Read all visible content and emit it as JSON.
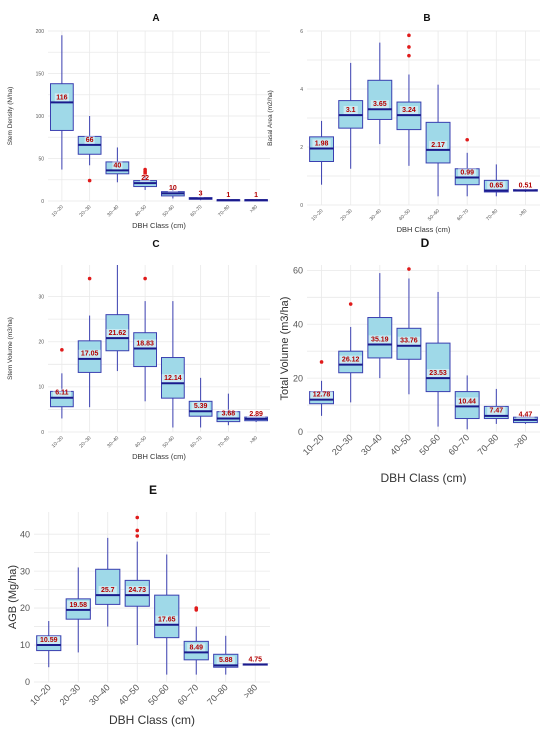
{
  "chart_data": [
    {
      "type": "box",
      "panel": "A",
      "categories": [
        "10–20",
        "20–30",
        "30–40",
        "40–50",
        "50–60",
        "60–70",
        "70–80",
        ">80"
      ],
      "xlabel": "DBH Class (cm)",
      "ylabel": "Stem Density (N/ha)",
      "ylim": [
        0,
        200
      ],
      "yticks": [
        0,
        50,
        100,
        150,
        200
      ],
      "labels": [
        "116",
        "66",
        "40",
        "22",
        "10",
        "3",
        "1",
        "1"
      ],
      "boxes": [
        {
          "min": 37,
          "q1": 83,
          "median": 116,
          "q3": 138,
          "max": 195,
          "outliers": []
        },
        {
          "min": 42,
          "q1": 55,
          "median": 66,
          "q3": 76,
          "max": 100,
          "outliers": [
            24
          ]
        },
        {
          "min": 22,
          "q1": 32,
          "median": 36,
          "q3": 46,
          "max": 63,
          "outliers": []
        },
        {
          "min": 13,
          "q1": 17,
          "median": 21,
          "q3": 24,
          "max": 29,
          "outliers": [
            31,
            33,
            35,
            37
          ]
        },
        {
          "min": 3,
          "q1": 6,
          "median": 9,
          "q3": 11,
          "max": 15,
          "outliers": []
        },
        {
          "min": 1,
          "q1": 2,
          "median": 3,
          "q3": 4,
          "max": 5,
          "outliers": []
        },
        {
          "min": 0,
          "q1": 0.5,
          "median": 1,
          "q3": 1.5,
          "max": 2,
          "outliers": []
        },
        {
          "min": 0,
          "q1": 0.5,
          "median": 1,
          "q3": 1.5,
          "max": 2,
          "outliers": []
        }
      ]
    },
    {
      "type": "box",
      "panel": "B",
      "categories": [
        "10–20",
        "20–30",
        "30–40",
        "40–50",
        "50–60",
        "60–70",
        "70–80",
        ">80"
      ],
      "xlabel": "DBH Class (cm)",
      "ylabel": "Basal Area (m2/ha)",
      "ylim": [
        0,
        6
      ],
      "yticks": [
        0,
        2,
        4,
        6
      ],
      "labels": [
        "1.98",
        "3.1",
        "3.65",
        "3.24",
        "2.17",
        "0.99",
        "0.65",
        "0.51"
      ],
      "boxes": [
        {
          "min": 0.7,
          "q1": 1.5,
          "median": 1.95,
          "q3": 2.35,
          "max": 2.9,
          "outliers": []
        },
        {
          "min": 1.25,
          "q1": 2.65,
          "median": 3.1,
          "q3": 3.6,
          "max": 4.9,
          "outliers": []
        },
        {
          "min": 2.1,
          "q1": 2.95,
          "median": 3.3,
          "q3": 4.3,
          "max": 5.6,
          "outliers": []
        },
        {
          "min": 1.35,
          "q1": 2.6,
          "median": 3.1,
          "q3": 3.55,
          "max": 4.5,
          "outliers": [
            5.15,
            5.45,
            5.85
          ]
        },
        {
          "min": 0.3,
          "q1": 1.45,
          "median": 1.9,
          "q3": 2.85,
          "max": 4.15,
          "outliers": []
        },
        {
          "min": 0.3,
          "q1": 0.7,
          "median": 0.95,
          "q3": 1.25,
          "max": 1.8,
          "outliers": [
            2.25
          ]
        },
        {
          "min": 0.3,
          "q1": 0.45,
          "median": 0.5,
          "q3": 0.85,
          "max": 1.4,
          "outliers": []
        },
        {
          "min": 0.45,
          "q1": 0.48,
          "median": 0.5,
          "q3": 0.53,
          "max": 0.56,
          "outliers": []
        }
      ]
    },
    {
      "type": "box",
      "panel": "C",
      "categories": [
        "10–20",
        "20–30",
        "30–40",
        "40–50",
        "50–60",
        "60–70",
        "70–80",
        ">80"
      ],
      "xlabel": "DBH Class (cm)",
      "ylabel": "Stem Volume (m3/ha)",
      "ylim": [
        0,
        37
      ],
      "yticks": [
        0,
        10,
        20,
        30
      ],
      "labels": [
        "6.11",
        "17.05",
        "21.62",
        "18.83",
        "12.14",
        "5.39",
        "3.68",
        "2.89"
      ],
      "boxes": [
        {
          "min": 3,
          "q1": 5.6,
          "median": 7.6,
          "q3": 9,
          "max": 13,
          "outliers": [
            18.2
          ]
        },
        {
          "min": 5.5,
          "q1": 13.2,
          "median": 16.2,
          "q3": 20.2,
          "max": 25.8,
          "outliers": [
            34
          ]
        },
        {
          "min": 13.5,
          "q1": 18,
          "median": 20.8,
          "q3": 26,
          "max": 37,
          "outliers": []
        },
        {
          "min": 6.8,
          "q1": 14.5,
          "median": 18.5,
          "q3": 22,
          "max": 29,
          "outliers": [
            34
          ]
        },
        {
          "min": 1,
          "q1": 7.5,
          "median": 10.8,
          "q3": 16.5,
          "max": 29,
          "outliers": []
        },
        {
          "min": 1,
          "q1": 3.5,
          "median": 4.6,
          "q3": 6.8,
          "max": 12,
          "outliers": []
        },
        {
          "min": 1.5,
          "q1": 2.3,
          "median": 3,
          "q3": 4.5,
          "max": 8.5,
          "outliers": []
        },
        {
          "min": 2.2,
          "q1": 2.5,
          "median": 2.9,
          "q3": 3.3,
          "max": 3.8,
          "outliers": []
        }
      ]
    },
    {
      "type": "box",
      "panel": "D",
      "categories": [
        "10–20",
        "20–30",
        "30–40",
        "40–50",
        "50–60",
        "60–70",
        "70–80",
        ">80"
      ],
      "xlabel": "DBH Class (cm)",
      "ylabel": "Total Volume (m3/ha)",
      "ylim": [
        0,
        62
      ],
      "yticks": [
        0,
        20,
        40,
        60
      ],
      "labels": [
        "12.78",
        "26.12",
        "35.19",
        "33.76",
        "23.53",
        "10.44",
        "7.47",
        "4.47"
      ],
      "boxes": [
        {
          "min": 6,
          "q1": 10.5,
          "median": 12,
          "q3": 15,
          "max": 19,
          "outliers": [
            26
          ]
        },
        {
          "min": 11,
          "q1": 22,
          "median": 25,
          "q3": 30,
          "max": 39,
          "outliers": [
            47.5
          ]
        },
        {
          "min": 20,
          "q1": 27.5,
          "median": 32.5,
          "q3": 42.5,
          "max": 59,
          "outliers": []
        },
        {
          "min": 14,
          "q1": 27,
          "median": 32,
          "q3": 38.5,
          "max": 57,
          "outliers": [
            60.5
          ]
        },
        {
          "min": 2,
          "q1": 15,
          "median": 20,
          "q3": 33,
          "max": 52,
          "outliers": []
        },
        {
          "min": 1,
          "q1": 5,
          "median": 9.5,
          "q3": 15,
          "max": 21,
          "outliers": []
        },
        {
          "min": 3,
          "q1": 5,
          "median": 6,
          "q3": 9.5,
          "max": 16,
          "outliers": []
        },
        {
          "min": 3,
          "q1": 3.5,
          "median": 4.5,
          "q3": 5.5,
          "max": 6.5,
          "outliers": []
        }
      ]
    },
    {
      "type": "box",
      "panel": "E",
      "categories": [
        "10–20",
        "20–30",
        "30–40",
        "40–50",
        "50–60",
        "60–70",
        "70–80",
        ">80"
      ],
      "xlabel": "DBH Class (cm)",
      "ylabel": "AGB (Mg/ha)",
      "ylim": [
        0,
        46
      ],
      "yticks": [
        0,
        10,
        20,
        30,
        40
      ],
      "labels": [
        "10.59",
        "19.58",
        "25.7",
        "24.73",
        "17.65",
        "8.49",
        "5.88",
        "4.75"
      ],
      "boxes": [
        {
          "min": 4,
          "q1": 8.5,
          "median": 10,
          "q3": 12.5,
          "max": 16.5,
          "outliers": []
        },
        {
          "min": 8,
          "q1": 17,
          "median": 19.5,
          "q3": 22.5,
          "max": 31,
          "outliers": []
        },
        {
          "min": 15,
          "q1": 21,
          "median": 23.5,
          "q3": 30.5,
          "max": 39,
          "outliers": []
        },
        {
          "min": 10,
          "q1": 20.5,
          "median": 23.5,
          "q3": 27.5,
          "max": 38,
          "outliers": [
            39.5,
            41,
            44.5
          ]
        },
        {
          "min": 2,
          "q1": 12,
          "median": 15.5,
          "q3": 23.5,
          "max": 34.5,
          "outliers": []
        },
        {
          "min": 2,
          "q1": 6,
          "median": 8,
          "q3": 11,
          "max": 15,
          "outliers": [
            19.5,
            20
          ]
        },
        {
          "min": 2,
          "q1": 4,
          "median": 4.5,
          "q3": 7.5,
          "max": 12.5,
          "outliers": []
        },
        {
          "min": 4.5,
          "q1": 4.6,
          "median": 4.75,
          "q3": 4.9,
          "max": 5,
          "outliers": []
        }
      ]
    }
  ],
  "colors": {
    "box_fill": "#9fd9e8",
    "box_stroke": "#3a3fb0",
    "median": "#1a1a8c",
    "outlier": "#e01b1b",
    "label": "#b30000",
    "grid": "#e9e9e9"
  }
}
